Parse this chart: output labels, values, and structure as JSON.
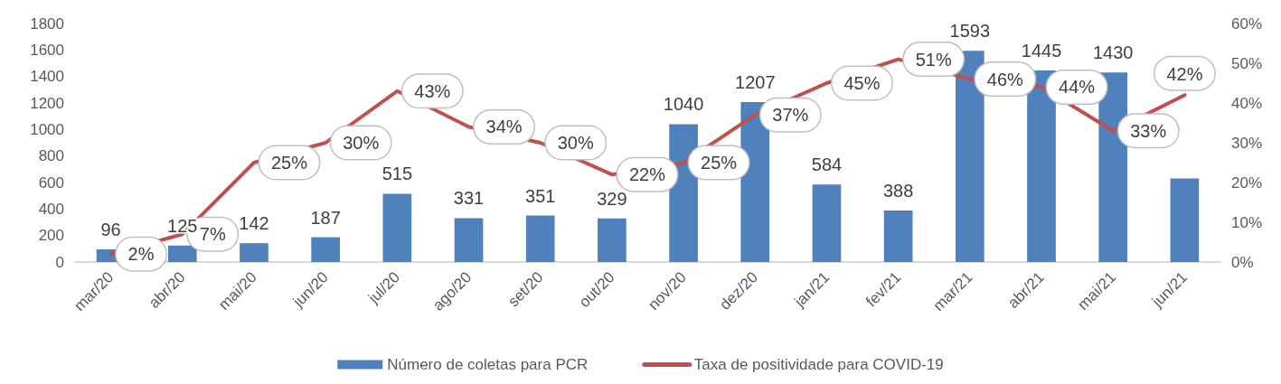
{
  "chart_data": {
    "type": "bar",
    "categories": [
      "mar/20",
      "abr/20",
      "mai/20",
      "jun/20",
      "jul/20",
      "ago/20",
      "set/20",
      "out/20",
      "nov/20",
      "dez/20",
      "jan/21",
      "fev/21",
      "mar/21",
      "abr/21",
      "mai/21",
      "jun/21"
    ],
    "series": [
      {
        "name": "Número de coletas para PCR",
        "color": "#4f81bd",
        "values": [
          96,
          125,
          142,
          187,
          515,
          331,
          351,
          329,
          1040,
          1207,
          584,
          388,
          1593,
          1445,
          1430,
          630
        ],
        "value_labels": [
          "96",
          "125",
          "142",
          "187",
          "515",
          "331",
          "351",
          "329",
          "1040",
          "1207",
          "584",
          "388",
          "1593",
          "1445",
          "1430",
          null
        ]
      },
      {
        "name": "Taxa de positividade para COVID-19",
        "type": "line",
        "axis": "y2",
        "color": "#c0504d",
        "values": [
          2,
          7,
          25,
          30,
          43,
          34,
          30,
          22,
          25,
          37,
          45,
          51,
          46,
          44,
          33,
          42
        ],
        "value_labels": [
          "2%",
          "7%",
          "25%",
          "30%",
          "43%",
          "34%",
          "30%",
          "22%",
          "25%",
          "37%",
          "45%",
          "51%",
          "46%",
          "44%",
          "33%",
          "42%"
        ]
      }
    ],
    "ylim": [
      0,
      1800
    ],
    "yticks": [
      0,
      200,
      400,
      600,
      800,
      1000,
      1200,
      1400,
      1600,
      1800
    ],
    "y2lim": [
      0,
      60
    ],
    "y2ticks": [
      {
        "value": 0,
        "label": "0%"
      },
      {
        "value": 10,
        "label": "10%"
      },
      {
        "value": 20,
        "label": "20%"
      },
      {
        "value": 30,
        "label": "30%"
      },
      {
        "value": 40,
        "label": "40%"
      },
      {
        "value": 50,
        "label": "50%"
      },
      {
        "value": 60,
        "label": "60%"
      }
    ],
    "legend": "bottom",
    "marker": "none",
    "line_style": "solid"
  }
}
